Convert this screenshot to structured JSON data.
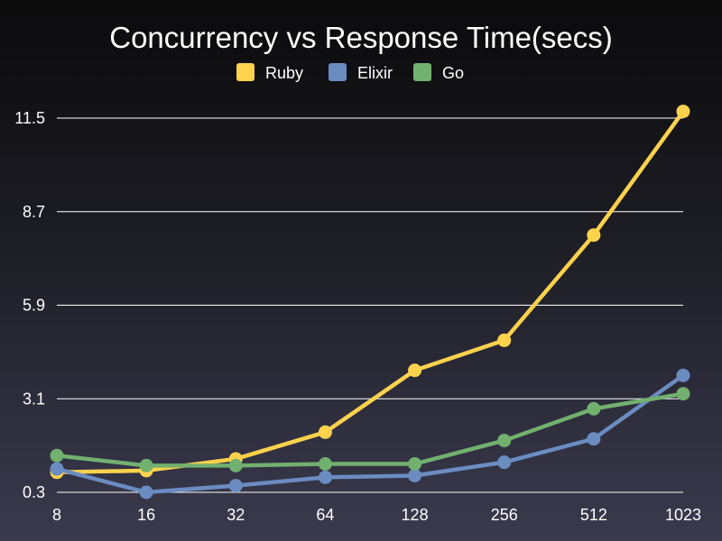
{
  "chart_data": {
    "type": "line",
    "title": "Concurrency vs Response Time(secs)",
    "xlabel": "",
    "ylabel": "",
    "categories": [
      "8",
      "16",
      "32",
      "64",
      "128",
      "256",
      "512",
      "1023"
    ],
    "yticks": [
      "0.3",
      "3.1",
      "5.9",
      "8.7",
      "11.5"
    ],
    "ylim": [
      0.3,
      11.5
    ],
    "grid": true,
    "legend_position": "top",
    "series": [
      {
        "name": "Ruby",
        "color": "#ffd24d",
        "values": [
          0.9,
          0.95,
          1.3,
          2.1,
          3.95,
          4.85,
          8.0,
          11.7
        ]
      },
      {
        "name": "Elixir",
        "color": "#6b8cc1",
        "values": [
          1.0,
          0.3,
          0.5,
          0.75,
          0.8,
          1.2,
          1.9,
          3.8
        ]
      },
      {
        "name": "Go",
        "color": "#72b06f",
        "values": [
          1.4,
          1.1,
          1.1,
          1.15,
          1.15,
          1.85,
          2.8,
          3.25
        ]
      }
    ]
  }
}
